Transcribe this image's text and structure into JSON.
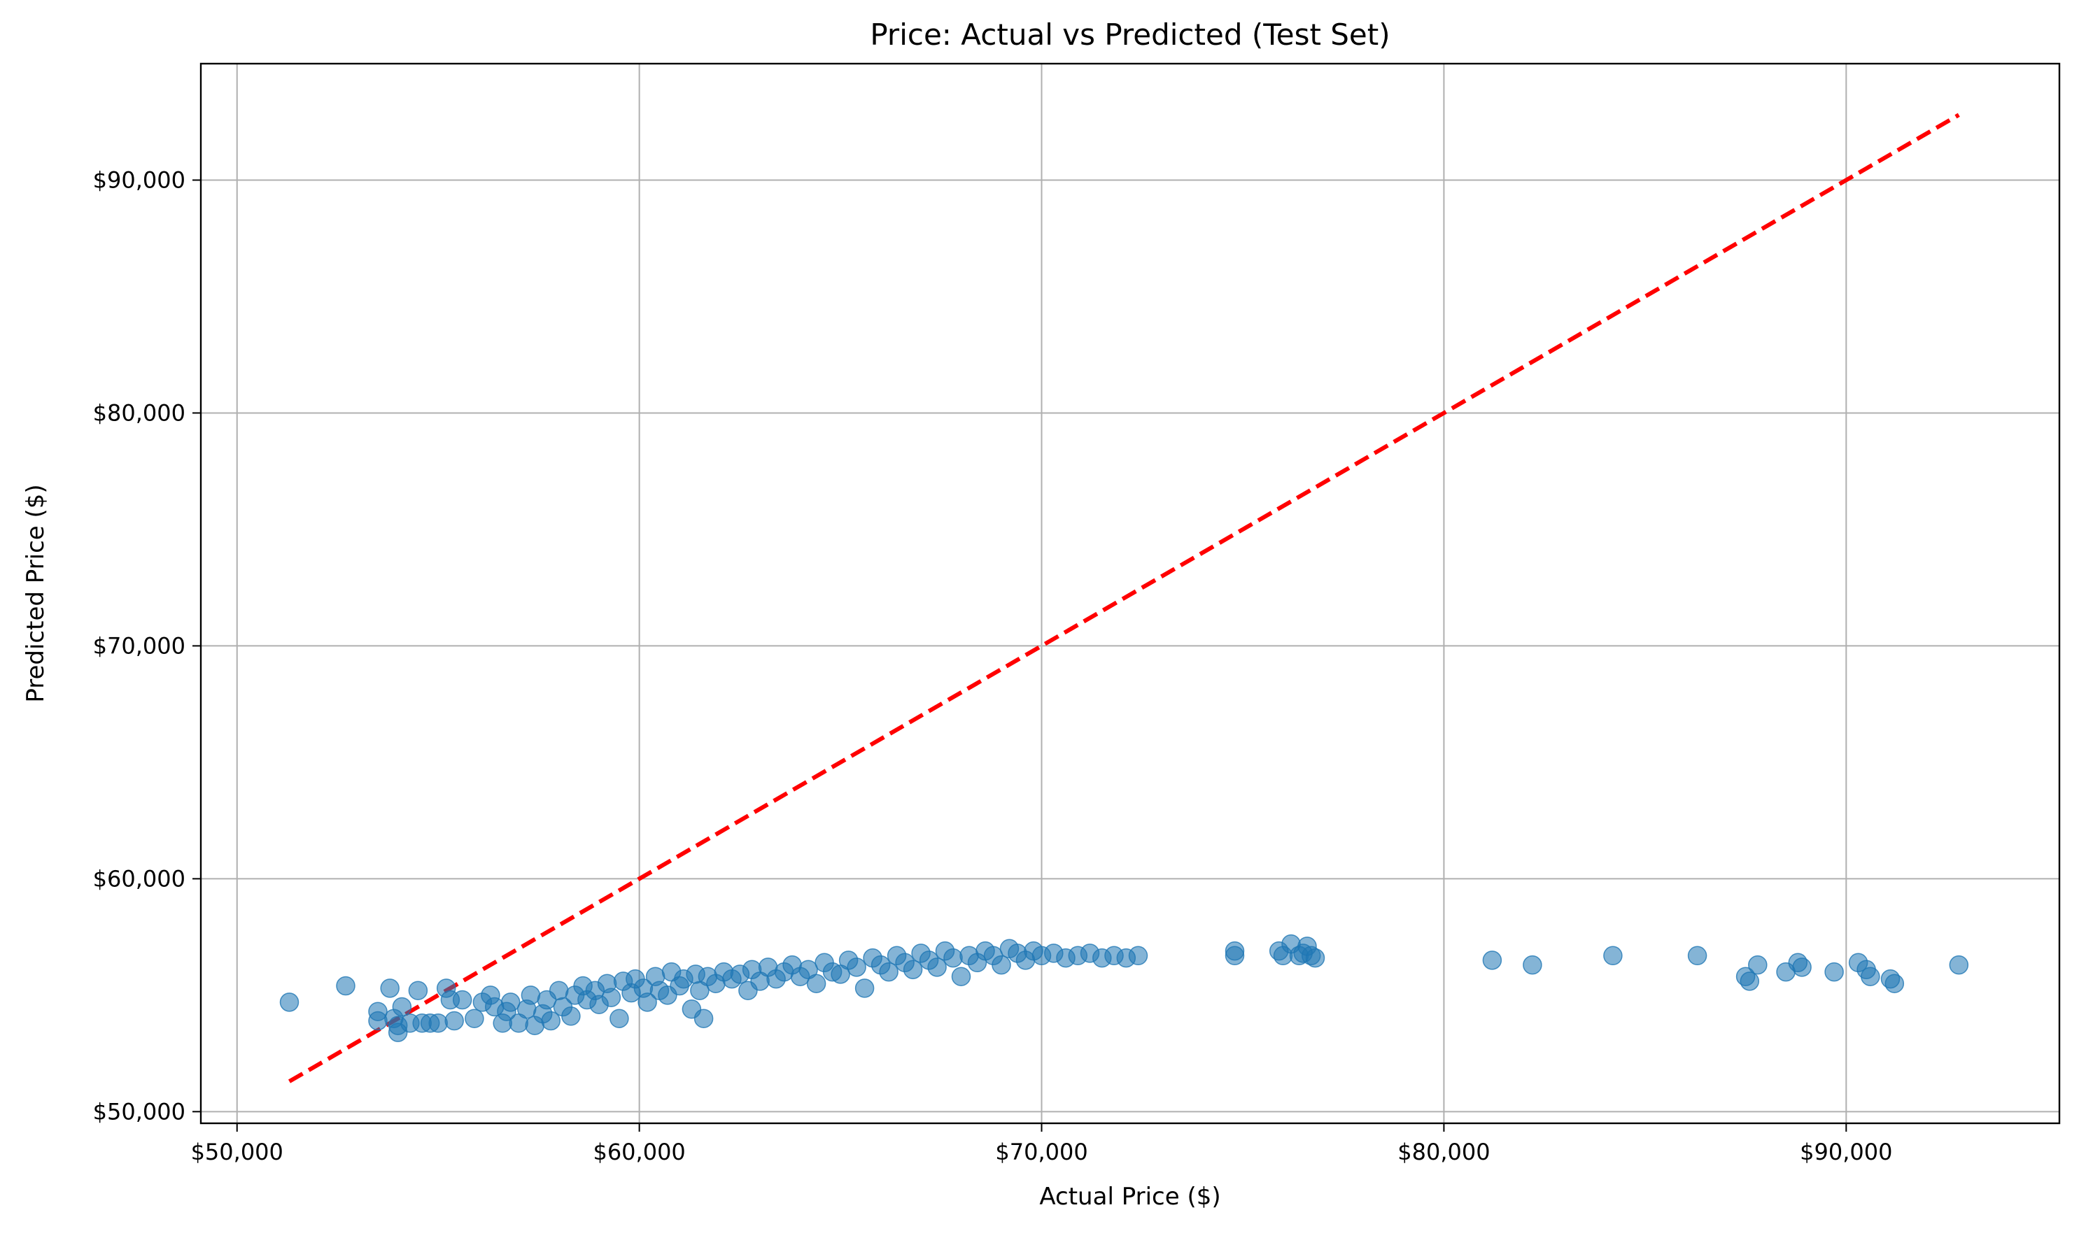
{
  "chart_data": {
    "type": "scatter",
    "title": "Price: Actual vs Predicted (Test Set)",
    "xlabel": "Actual Price ($)",
    "ylabel": "Predicted Price ($)",
    "xlim": [
      49100,
      95300
    ],
    "ylim": [
      49500,
      95000
    ],
    "x_ticks": [
      {
        "value": 50000,
        "label": "$50,000"
      },
      {
        "value": 60000,
        "label": "$60,000"
      },
      {
        "value": 70000,
        "label": "$70,000"
      },
      {
        "value": 80000,
        "label": "$80,000"
      },
      {
        "value": 90000,
        "label": "$90,000"
      }
    ],
    "y_ticks": [
      {
        "value": 50000,
        "label": "$50,000"
      },
      {
        "value": 60000,
        "label": "$60,000"
      },
      {
        "value": 70000,
        "label": "$70,000"
      },
      {
        "value": 80000,
        "label": "$80,000"
      },
      {
        "value": 90000,
        "label": "$90,000"
      }
    ],
    "grid": true,
    "point_color": "#1f77b4",
    "point_alpha": 0.55,
    "reference_line": {
      "style": "dashed",
      "color": "#ff0000",
      "from": [
        51300,
        51300
      ],
      "to": [
        92800,
        92800
      ]
    },
    "points": [
      [
        51300,
        54700
      ],
      [
        52700,
        55400
      ],
      [
        53500,
        54300
      ],
      [
        53500,
        53900
      ],
      [
        53800,
        55300
      ],
      [
        53900,
        54000
      ],
      [
        54000,
        53400
      ],
      [
        54000,
        53700
      ],
      [
        54100,
        54500
      ],
      [
        54300,
        53800
      ],
      [
        54500,
        55200
      ],
      [
        54600,
        53800
      ],
      [
        54800,
        53800
      ],
      [
        55000,
        53800
      ],
      [
        55200,
        55300
      ],
      [
        55300,
        54800
      ],
      [
        55400,
        53900
      ],
      [
        55600,
        54800
      ],
      [
        55900,
        54000
      ],
      [
        56100,
        54700
      ],
      [
        56300,
        55000
      ],
      [
        56400,
        54500
      ],
      [
        56600,
        53800
      ],
      [
        56700,
        54300
      ],
      [
        56800,
        54700
      ],
      [
        57000,
        53800
      ],
      [
        57200,
        54400
      ],
      [
        57300,
        55000
      ],
      [
        57400,
        53700
      ],
      [
        57600,
        54200
      ],
      [
        57700,
        54800
      ],
      [
        57800,
        53900
      ],
      [
        58000,
        55200
      ],
      [
        58100,
        54500
      ],
      [
        58300,
        54100
      ],
      [
        58400,
        55000
      ],
      [
        58600,
        55400
      ],
      [
        58700,
        54800
      ],
      [
        58900,
        55200
      ],
      [
        59000,
        54600
      ],
      [
        59200,
        55500
      ],
      [
        59300,
        54900
      ],
      [
        59500,
        54000
      ],
      [
        59600,
        55600
      ],
      [
        59800,
        55100
      ],
      [
        59900,
        55700
      ],
      [
        60100,
        55300
      ],
      [
        60200,
        54700
      ],
      [
        60400,
        55800
      ],
      [
        60500,
        55200
      ],
      [
        60700,
        55000
      ],
      [
        60800,
        56000
      ],
      [
        61000,
        55400
      ],
      [
        61100,
        55700
      ],
      [
        61300,
        54400
      ],
      [
        61400,
        55900
      ],
      [
        61500,
        55200
      ],
      [
        61600,
        54000
      ],
      [
        61700,
        55800
      ],
      [
        61900,
        55500
      ],
      [
        62100,
        56000
      ],
      [
        62300,
        55700
      ],
      [
        62500,
        55900
      ],
      [
        62700,
        55200
      ],
      [
        62800,
        56100
      ],
      [
        63000,
        55600
      ],
      [
        63200,
        56200
      ],
      [
        63400,
        55700
      ],
      [
        63600,
        56000
      ],
      [
        63800,
        56300
      ],
      [
        64000,
        55800
      ],
      [
        64200,
        56100
      ],
      [
        64400,
        55500
      ],
      [
        64600,
        56400
      ],
      [
        64800,
        56000
      ],
      [
        65000,
        55900
      ],
      [
        65200,
        56500
      ],
      [
        65400,
        56200
      ],
      [
        65600,
        55300
      ],
      [
        65800,
        56600
      ],
      [
        66000,
        56300
      ],
      [
        66200,
        56000
      ],
      [
        66400,
        56700
      ],
      [
        66600,
        56400
      ],
      [
        66800,
        56100
      ],
      [
        67000,
        56800
      ],
      [
        67200,
        56500
      ],
      [
        67400,
        56200
      ],
      [
        67600,
        56900
      ],
      [
        67800,
        56600
      ],
      [
        68000,
        55800
      ],
      [
        68200,
        56700
      ],
      [
        68400,
        56400
      ],
      [
        68600,
        56900
      ],
      [
        68800,
        56700
      ],
      [
        69000,
        56300
      ],
      [
        69200,
        57000
      ],
      [
        69400,
        56800
      ],
      [
        69600,
        56500
      ],
      [
        69800,
        56900
      ],
      [
        70000,
        56700
      ],
      [
        70300,
        56800
      ],
      [
        70600,
        56600
      ],
      [
        70900,
        56700
      ],
      [
        71200,
        56800
      ],
      [
        71500,
        56600
      ],
      [
        71800,
        56700
      ],
      [
        72100,
        56600
      ],
      [
        72400,
        56700
      ],
      [
        74800,
        56700
      ],
      [
        74800,
        56900
      ],
      [
        75900,
        56900
      ],
      [
        76000,
        56700
      ],
      [
        76200,
        57200
      ],
      [
        76400,
        56700
      ],
      [
        76500,
        56800
      ],
      [
        76600,
        57100
      ],
      [
        76700,
        56700
      ],
      [
        76800,
        56600
      ],
      [
        81200,
        56500
      ],
      [
        82200,
        56300
      ],
      [
        84200,
        56700
      ],
      [
        86300,
        56700
      ],
      [
        87500,
        55800
      ],
      [
        87600,
        55600
      ],
      [
        87800,
        56300
      ],
      [
        88500,
        56000
      ],
      [
        88800,
        56400
      ],
      [
        88900,
        56200
      ],
      [
        89700,
        56000
      ],
      [
        90300,
        56400
      ],
      [
        90500,
        56100
      ],
      [
        90600,
        55800
      ],
      [
        91100,
        55700
      ],
      [
        91200,
        55500
      ],
      [
        92800,
        56300
      ]
    ]
  }
}
